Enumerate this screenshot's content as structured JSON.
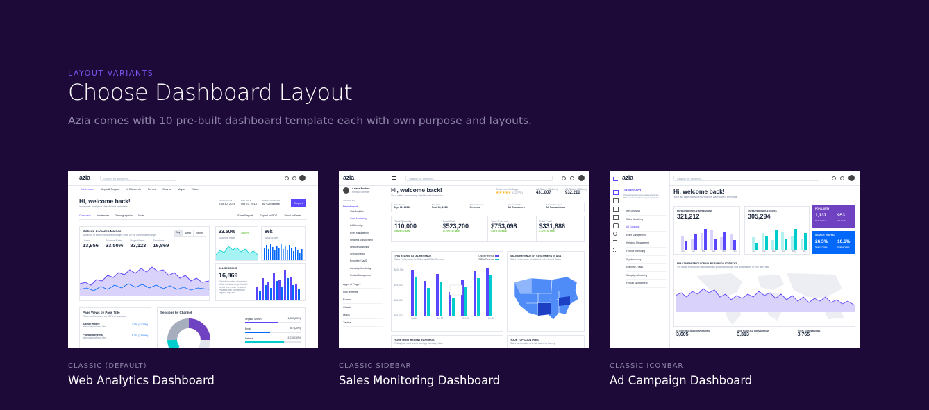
{
  "section": {
    "eyebrow": "LAYOUT VARIANTS",
    "title": "Choose Dashboard Layout",
    "subtitle": "Azia comes with 10 pre-built dashboard template each with own purpose and layouts."
  },
  "cards": [
    {
      "variant": "CLASSIC (DEFAULT)",
      "name": "Web Analytics Dashboard",
      "preview": {
        "logo": "azia",
        "search_placeholder": "Search for anything...",
        "nav": [
          "Dashboard",
          "Apps & Pages",
          "UI Elements",
          "Forms",
          "Charts",
          "Maps",
          "Tables"
        ],
        "greeting": "Hi, welcome back!",
        "greeting_sub": "Your web analytics dashboard template.",
        "filters": [
          {
            "label": "START DATE",
            "value": "Oct 10, 2018"
          },
          {
            "label": "END DATE",
            "value": "Oct 23, 2018"
          },
          {
            "label": "EVENT CATEGORY",
            "value": "All Categories"
          }
        ],
        "export_label": "Export",
        "tabs": [
          "Overview",
          "Audiences",
          "Demographics",
          "More"
        ],
        "actions": [
          "Save Report",
          "Export to PDF",
          "Send to Email"
        ],
        "audience_title": "Website Audience Metrics",
        "audience_sub": "Audience to which the users belonged while on the current date range.",
        "period_tabs": [
          "Day",
          "Week",
          "Month"
        ],
        "metrics": [
          {
            "label": "Users",
            "value": "13,956"
          },
          {
            "label": "Bounce Rate",
            "value": "33.50%"
          },
          {
            "label": "Page Views",
            "value": "83,123"
          },
          {
            "label": "Sessions",
            "value": "16,869"
          }
        ],
        "bounce_value": "33.50%",
        "bounce_label": "Bounce Rate",
        "bounce_delta": "18.02%",
        "users_value": "86k",
        "users_label": "Total Users",
        "sessions_label": "ALL SESSIONS",
        "sessions_value": "16,869",
        "sessions_desc": "The total number of sessions within the date range. It is the period time a user is actively engaged with your website, page or app, etc.",
        "pageviews_title": "Page Views by Page Title",
        "pageviews_sub": "This report is based on 100% of sessions.",
        "pages": [
          {
            "title": "Admin Home",
            "path": "/demo/admin/index.html",
            "value": "7,755 (31.74%)"
          },
          {
            "title": "Form Elements",
            "path": "/demo/admin/forms.html",
            "value": "5,215 (22.69%)"
          }
        ],
        "channel_title": "Sessions by Channel",
        "channels": [
          "Organic Search",
          "Email",
          "Referral"
        ],
        "channel_values": [
          "1,320 (25%)",
          "987 (20%)",
          "2,010 (30%)"
        ]
      }
    },
    {
      "variant": "CLASSIC SIDEBAR",
      "name": "Sales Monitoring Dashboard",
      "preview": {
        "logo": "azia",
        "search_placeholder": "Search for anything...",
        "user_name": "Aziana Pechon",
        "user_role": "Premium Member",
        "nav_heading": "NAVIGATION",
        "nav": [
          "Dashboard",
          "Web Analytics",
          "Sales Monitoring",
          "Ad Campaign",
          "Event Management",
          "Helpdesk Management",
          "Finance Monitoring",
          "Cryptocurrency",
          "Executive / SaaS",
          "Campaign Monitoring",
          "Product Management"
        ],
        "nav_bottom": [
          "Apps & Pages",
          "UI Elements",
          "Forms",
          "Charts",
          "Maps",
          "Tables"
        ],
        "greeting": "Hi, welcome back!",
        "greeting_sub": "Your sales monitoring dashboard template.",
        "ratings_label": "Customer Ratings",
        "ratings_count": "(12,775)",
        "sales_online_label": "All Sales (Online)",
        "sales_online": "431,007",
        "sales_offline_label": "All Sales (Offline)",
        "sales_offline": "932,210",
        "filters": [
          {
            "label": "Date Range",
            "value": "Sept 01, 2018"
          },
          {
            "label": "End Date",
            "value": "Sept 30, 2018"
          },
          {
            "label": "Sales Measure",
            "value": "Revenue"
          },
          {
            "label": "Customer Type",
            "value": "All Customers"
          },
          {
            "label": "Transaction Type",
            "value": "All Transactions"
          }
        ],
        "kpis": [
          {
            "label": "Total Quantity",
            "value": "110,000",
            "delta": "0.86% (30 days)"
          },
          {
            "label": "Total Cost",
            "value": "523,200",
            "delta": "12.09% (30 days)"
          },
          {
            "label": "Total Revenue",
            "value": "753,098",
            "delta": "0.65% (30 days)"
          },
          {
            "label": "Total Profit",
            "value": "331,886",
            "delta": "0.32% (30 days)"
          }
        ],
        "revenue_title": "THIS YEAR'S TOTAL REVENUE",
        "revenue_sub": "Sales Performance for Online and Offline Revenue",
        "legend": [
          "Online Revenue",
          "Offline Revenue"
        ],
        "y_ticks": [
          "$100,000",
          "$75,000",
          "$50,000",
          "$25,000"
        ],
        "x_ticks": [
          "Oct 01",
          "Oct 10",
          "Oct 20",
          "Oct 28"
        ],
        "map_title": "SALES REVENUE BY CUSTOMERS IN USA",
        "map_sub": "Sales Performance of all states in the United States",
        "bottom_left": "YOUR MOST RECENT EARNINGS",
        "bottom_left_sub": "This is your most recent earnings for today's date.",
        "bottom_right": "YOUR TOP COUNTRIES",
        "bottom_right_sub": "Sales performance revenue based by country"
      }
    },
    {
      "variant": "CLASSIC ICONBAR",
      "name": "Ad Campaign Dashboard",
      "preview": {
        "logo": "azia",
        "search_placeholder": "Search for anything...",
        "menu_title": "Dashboard",
        "menu_sub": "Choose between layouts to experience different view and feel for your projects.",
        "menu": [
          "Web Analytics",
          "Sales Monitoring",
          "Ad Campaign",
          "Event Management",
          "Helpdesk Management",
          "Finance Monitoring",
          "Cryptocurrency",
          "Executive / SaaS",
          "Campaign Monitoring",
          "Product Management"
        ],
        "greeting": "Hi, welcome back!",
        "greeting_sub": "Your ad campaign performance dashboard template.",
        "impressions_label": "ESTIMATED UNIQUE IMPRESSIONS",
        "impressions_value": "321,212",
        "clicks_label": "ESTIMATED UNIQUE CLICKS",
        "clicks_value": "305,294",
        "popularity_label": "POPULARITY",
        "popularity_a": "1,137",
        "popularity_a_label": "Global Rank",
        "popularity_b": "953",
        "popularity_b_label": "US Rank",
        "traffic_label": "SEARCH TRAFFIC",
        "traffic_a": "26.5%",
        "traffic_a_label": "Search Visits",
        "traffic_b": "10.6%",
        "traffic_b_label": "Unique Visits",
        "realtime_title": "REAL TIME METRICS FOR YOUR CAMPAIGN STATISTICS",
        "realtime_sub": "The global and country campaign stats show how popular your ad is relative to your other ads.",
        "conv_a_label": "CLICK THROUGH CONVERSIONS",
        "conv_a": "3,605",
        "conv_b_label": "VIEW THROUGH CONVERSIONS",
        "conv_b": "3,313",
        "conv_c_label": "TOTAL CONVERSIONS",
        "conv_c": "8,765",
        "months": [
          "Jan",
          "Feb",
          "Mar",
          "Apr",
          "May",
          "Jun"
        ]
      }
    }
  ],
  "colors": {
    "background": "#1d0a38",
    "accent": "#7b55f0",
    "primary": "#5b47fb",
    "cyan": "#00cccc",
    "blue": "#0168fa"
  }
}
